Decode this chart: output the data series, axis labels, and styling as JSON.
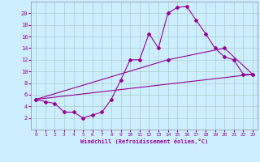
{
  "xlabel": "Windchill (Refroidissement éolien,°C)",
  "bg_color": "#cceeff",
  "line_color": "#990099",
  "grid_color": "#aacccc",
  "xlim": [
    -0.5,
    23.5
  ],
  "ylim": [
    0,
    22
  ],
  "xticks": [
    0,
    1,
    2,
    3,
    4,
    5,
    6,
    7,
    8,
    9,
    10,
    11,
    12,
    13,
    14,
    15,
    16,
    17,
    18,
    19,
    20,
    21,
    22,
    23
  ],
  "yticks": [
    2,
    4,
    6,
    8,
    10,
    12,
    14,
    16,
    18,
    20
  ],
  "curve1_x": [
    0,
    1,
    2,
    3,
    4,
    5,
    6,
    7,
    8,
    9,
    10,
    11,
    12,
    13,
    14,
    15,
    16,
    17,
    18,
    19,
    20,
    21,
    22,
    23
  ],
  "curve1_y": [
    5.2,
    4.8,
    4.5,
    3.0,
    3.0,
    2.0,
    2.5,
    3.0,
    5.2,
    8.5,
    12.0,
    12.0,
    16.5,
    14.0,
    20.0,
    21.0,
    21.2,
    18.8,
    16.5,
    14.0,
    12.5,
    12.0,
    9.5,
    9.5
  ],
  "line2_x": [
    0,
    14,
    20,
    23
  ],
  "line2_y": [
    5.2,
    12.0,
    14.0,
    9.5
  ],
  "line3_x": [
    0,
    23
  ],
  "line3_y": [
    5.2,
    9.5
  ]
}
